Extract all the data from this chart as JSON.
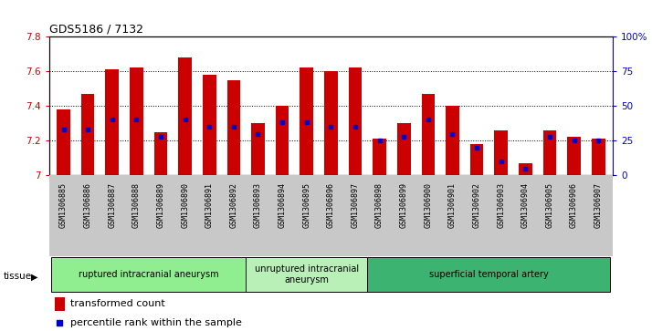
{
  "title": "GDS5186 / 7132",
  "samples": [
    "GSM1306885",
    "GSM1306886",
    "GSM1306887",
    "GSM1306888",
    "GSM1306889",
    "GSM1306890",
    "GSM1306891",
    "GSM1306892",
    "GSM1306893",
    "GSM1306894",
    "GSM1306895",
    "GSM1306896",
    "GSM1306897",
    "GSM1306898",
    "GSM1306899",
    "GSM1306900",
    "GSM1306901",
    "GSM1306902",
    "GSM1306903",
    "GSM1306904",
    "GSM1306905",
    "GSM1306906",
    "GSM1306907"
  ],
  "transformed_count": [
    7.38,
    7.47,
    7.61,
    7.62,
    7.25,
    7.68,
    7.58,
    7.55,
    7.3,
    7.4,
    7.62,
    7.6,
    7.62,
    7.21,
    7.3,
    7.47,
    7.4,
    7.18,
    7.26,
    7.07,
    7.26,
    7.22,
    7.21
  ],
  "percentile_rank": [
    33,
    33,
    40,
    40,
    28,
    40,
    35,
    35,
    30,
    38,
    38,
    35,
    35,
    25,
    28,
    40,
    30,
    20,
    10,
    5,
    28,
    25,
    25
  ],
  "groups": [
    {
      "label": "ruptured intracranial aneurysm",
      "start": 0,
      "end": 8,
      "color": "#90EE90"
    },
    {
      "label": "unruptured intracranial\naneurysm",
      "start": 8,
      "end": 13,
      "color": "#b8f0b8"
    },
    {
      "label": "superficial temporal artery",
      "start": 13,
      "end": 23,
      "color": "#3cb371"
    }
  ],
  "y_min": 7.0,
  "y_max": 7.8,
  "bar_color": "#CC0000",
  "dot_color": "#0000CC",
  "xtick_bg_color": "#c8c8c8",
  "plot_bg_color": "#ffffff",
  "title_color": "#000000",
  "left_axis_color": "#CC0000",
  "right_axis_color": "#0000CC"
}
